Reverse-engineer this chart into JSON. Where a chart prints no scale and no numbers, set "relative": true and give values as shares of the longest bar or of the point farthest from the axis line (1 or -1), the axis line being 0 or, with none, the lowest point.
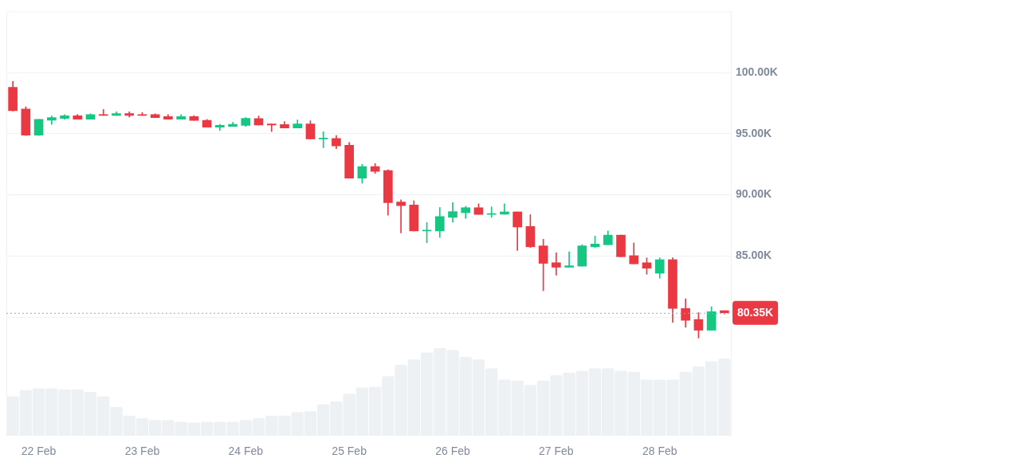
{
  "chart_data": [
    {
      "type": "candlestick",
      "categories": [
        null,
        null,
        "22 Feb",
        null,
        null,
        null,
        null,
        null,
        null,
        null,
        "23 Feb",
        null,
        null,
        null,
        null,
        null,
        null,
        null,
        "24 Feb",
        null,
        null,
        null,
        null,
        null,
        null,
        null,
        "25 Feb",
        null,
        null,
        null,
        null,
        null,
        null,
        null,
        "26 Feb",
        null,
        null,
        null,
        null,
        null,
        null,
        null,
        "27 Feb",
        null,
        null,
        null,
        null,
        null,
        null,
        null,
        "28 Feb",
        null,
        null,
        null,
        null,
        null
      ],
      "ohlc": [
        [
          98.8,
          99.29,
          96.85,
          96.88
        ],
        [
          97.03,
          97.2,
          94.85,
          94.89
        ],
        [
          94.89,
          96.18,
          94.85,
          96.18
        ],
        [
          96.11,
          96.45,
          95.77,
          96.33
        ],
        [
          96.26,
          96.56,
          96.18,
          96.47
        ],
        [
          96.47,
          96.58,
          96.18,
          96.18
        ],
        [
          96.18,
          96.64,
          96.18,
          96.56
        ],
        [
          96.56,
          96.99,
          96.49,
          96.49
        ],
        [
          96.49,
          96.79,
          96.49,
          96.65
        ],
        [
          96.65,
          96.79,
          96.36,
          96.49
        ],
        [
          96.56,
          96.73,
          96.49,
          96.49
        ],
        [
          96.56,
          96.64,
          96.32,
          96.32
        ],
        [
          96.41,
          96.56,
          96.18,
          96.18
        ],
        [
          96.18,
          96.56,
          96.18,
          96.41
        ],
        [
          96.41,
          96.49,
          96.09,
          96.09
        ],
        [
          96.09,
          96.18,
          95.53,
          95.53
        ],
        [
          95.53,
          95.77,
          95.28,
          95.68
        ],
        [
          95.6,
          95.94,
          95.6,
          95.77
        ],
        [
          95.68,
          96.33,
          95.6,
          96.26
        ],
        [
          96.24,
          96.45,
          95.71,
          95.71
        ],
        [
          95.81,
          95.81,
          95.17,
          95.71
        ],
        [
          95.75,
          95.99,
          95.47,
          95.47
        ],
        [
          95.47,
          96.13,
          95.47,
          95.81
        ],
        [
          95.81,
          96.07,
          94.57,
          94.57
        ],
        [
          94.57,
          95.17,
          93.85,
          94.65
        ],
        [
          94.62,
          94.85,
          93.78,
          94.0
        ],
        [
          94.06,
          94.28,
          91.37,
          91.37
        ],
        [
          91.37,
          92.5,
          90.96,
          92.31
        ],
        [
          92.31,
          92.56,
          91.75,
          91.92
        ],
        [
          91.99,
          92.05,
          88.33,
          89.36
        ],
        [
          89.42,
          89.6,
          86.88,
          89.12
        ],
        [
          89.17,
          89.51,
          87.05,
          87.05
        ],
        [
          87.05,
          87.74,
          86.09,
          87.1
        ],
        [
          87.05,
          88.97,
          86.52,
          88.23
        ],
        [
          88.16,
          89.36,
          87.76,
          88.63
        ],
        [
          88.54,
          89.06,
          88.08,
          88.95
        ],
        [
          88.95,
          89.27,
          88.4,
          88.4
        ],
        [
          88.4,
          89.02,
          88.16,
          88.47
        ],
        [
          88.42,
          89.27,
          88.42,
          88.61
        ],
        [
          88.61,
          88.61,
          85.45,
          87.37
        ],
        [
          87.42,
          88.38,
          85.69,
          85.75
        ],
        [
          85.83,
          86.37,
          82.16,
          84.4
        ],
        [
          84.45,
          85.26,
          83.44,
          84.08
        ],
        [
          84.08,
          85.34,
          84.08,
          84.2
        ],
        [
          84.17,
          85.92,
          84.17,
          85.83
        ],
        [
          85.75,
          86.63,
          85.69,
          85.98
        ],
        [
          85.92,
          87.05,
          85.92,
          86.71
        ],
        [
          86.71,
          86.71,
          84.94,
          84.94
        ],
        [
          85.03,
          86.07,
          84.36,
          84.36
        ],
        [
          84.45,
          84.85,
          83.51,
          84.0
        ],
        [
          83.59,
          84.85,
          83.19,
          84.7
        ],
        [
          84.7,
          84.85,
          79.57,
          80.71
        ],
        [
          80.71,
          81.5,
          79.17,
          79.74
        ],
        [
          79.81,
          80.37,
          78.29,
          78.93
        ],
        [
          78.93,
          80.85,
          78.93,
          80.45
        ],
        [
          80.53,
          80.53,
          80.26,
          80.35
        ]
      ],
      "colors": [
        "#ea3943",
        "#ea3943",
        "#16c784",
        "#16c784",
        "#16c784",
        "#ea3943",
        "#16c784",
        "#ea3943",
        "#16c784",
        "#ea3943",
        "#ea3943",
        "#ea3943",
        "#ea3943",
        "#16c784",
        "#ea3943",
        "#ea3943",
        "#16c784",
        "#16c784",
        "#16c784",
        "#ea3943",
        "#ea3943",
        "#ea3943",
        "#16c784",
        "#ea3943",
        "#16c784",
        "#ea3943",
        "#ea3943",
        "#16c784",
        "#ea3943",
        "#ea3943",
        "#ea3943",
        "#ea3943",
        "#16c784",
        "#16c784",
        "#16c784",
        "#16c784",
        "#ea3943",
        "#16c784",
        "#16c784",
        "#ea3943",
        "#ea3943",
        "#ea3943",
        "#ea3943",
        "#16c784",
        "#16c784",
        "#16c784",
        "#16c784",
        "#ea3943",
        "#ea3943",
        "#ea3943",
        "#16c784",
        "#ea3943",
        "#ea3943",
        "#ea3943",
        "#16c784",
        "#ea3943"
      ],
      "ylim": [
        70.3,
        105
      ],
      "yticks": [
        {
          "value": 80,
          "label": null
        },
        {
          "value": 85,
          "label": "85.00K"
        },
        {
          "value": 90,
          "label": "90.00K"
        },
        {
          "value": 95,
          "label": "95.00K"
        },
        {
          "value": 100,
          "label": "100.00K"
        }
      ],
      "grid": "y",
      "ref_lines": [
        {
          "axis": "y",
          "value": 80.35,
          "label": "80.35K",
          "line_style": "dotted"
        }
      ]
    },
    {
      "type": "bar",
      "relative": true,
      "color": "#eef1f4",
      "categories": [
        null,
        null,
        null,
        null,
        null,
        null,
        null,
        null,
        null,
        null,
        null,
        null,
        null,
        null,
        null,
        null,
        null,
        null,
        null,
        null,
        null,
        null,
        null,
        null,
        null,
        null,
        null,
        null,
        null,
        null,
        null,
        null,
        null,
        null,
        null,
        null,
        null,
        null,
        null,
        null,
        null,
        null,
        null,
        null,
        null,
        null,
        null,
        null,
        null,
        null,
        null,
        null,
        null,
        null,
        null,
        null
      ],
      "values": [
        0.45,
        0.52,
        0.54,
        0.54,
        0.53,
        0.53,
        0.5,
        0.45,
        0.33,
        0.23,
        0.2,
        0.18,
        0.18,
        0.16,
        0.15,
        0.16,
        0.16,
        0.16,
        0.18,
        0.2,
        0.23,
        0.23,
        0.27,
        0.28,
        0.36,
        0.39,
        0.48,
        0.55,
        0.56,
        0.68,
        0.81,
        0.87,
        0.95,
        1,
        0.98,
        0.9,
        0.87,
        0.77,
        0.64,
        0.63,
        0.58,
        0.63,
        0.69,
        0.72,
        0.74,
        0.77,
        0.77,
        0.74,
        0.73,
        0.64,
        0.64,
        0.64,
        0.73,
        0.79,
        0.85,
        0.88
      ]
    }
  ]
}
